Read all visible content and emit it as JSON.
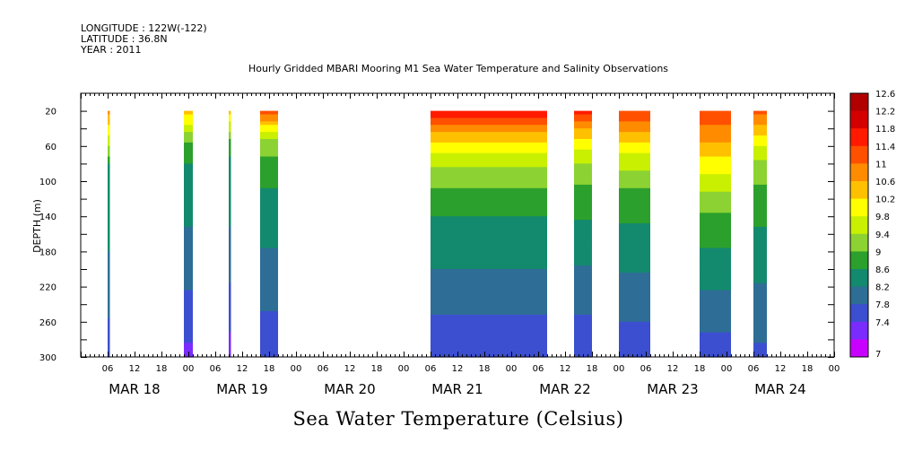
{
  "header": {
    "longitude": "LONGITUDE : 122W(-122)",
    "latitude": "LATITUDE : 36.8N",
    "year": "YEAR : 2011"
  },
  "chart_data": {
    "type": "heatmap",
    "title": "Hourly Gridded MBARI Mooring M1 Sea Water Temperature and Salinity Observations",
    "xlabel": "",
    "ylabel": "DEPTH (m)",
    "colorbar_label": "Sea Water Temperature (Celsius)",
    "x_unit": "hours since MAR 18 00:00",
    "xlim": [
      0,
      168
    ],
    "ylim": [
      300,
      0
    ],
    "yticks": [
      20,
      60,
      100,
      140,
      180,
      220,
      260,
      300
    ],
    "x_hour_ticks": [
      "06",
      "12",
      "18",
      "00",
      "06",
      "12",
      "18",
      "00",
      "06",
      "12",
      "18",
      "00",
      "06",
      "12",
      "18",
      "00",
      "06",
      "12",
      "18",
      "00",
      "06",
      "12",
      "18",
      "00",
      "06",
      "12",
      "18",
      "00"
    ],
    "date_labels": [
      "MAR 18",
      "MAR 19",
      "MAR 20",
      "MAR 21",
      "MAR 22",
      "MAR 23",
      "MAR 24"
    ],
    "depth_range": [
      20,
      300
    ],
    "colorbar": {
      "levels": [
        "12.6",
        "12.2",
        "11.8",
        "11.4",
        "11",
        "10.6",
        "10.2",
        "9.8",
        "9.4",
        "9",
        "8.6",
        "8.2",
        "7.8",
        "7.4",
        "7"
      ],
      "colors": [
        "#b00000",
        "#d40000",
        "#ff1a00",
        "#ff5000",
        "#ff8c00",
        "#ffc000",
        "#ffff00",
        "#c8f000",
        "#8cd232",
        "#2ca02c",
        "#138a6e",
        "#2e6e96",
        "#3c4fd0",
        "#7a2cff",
        "#c800ff"
      ]
    },
    "segments": [
      {
        "start": 6.0,
        "end": 6.5,
        "profile": [
          [
            20,
            10.8
          ],
          [
            40,
            10.1
          ],
          [
            60,
            9.4
          ],
          [
            80,
            8.6
          ],
          [
            120,
            8.3
          ],
          [
            180,
            8.2
          ],
          [
            240,
            7.9
          ],
          [
            300,
            7.5
          ]
        ]
      },
      {
        "start": 23.0,
        "end": 25.0,
        "profile": [
          [
            20,
            10.3
          ],
          [
            40,
            9.6
          ],
          [
            60,
            8.8
          ],
          [
            100,
            8.4
          ],
          [
            180,
            8.1
          ],
          [
            240,
            7.7
          ],
          [
            300,
            7.3
          ]
        ]
      },
      {
        "start": 33.0,
        "end": 33.5,
        "profile": [
          [
            20,
            10.4
          ],
          [
            40,
            9.5
          ],
          [
            60,
            8.7
          ],
          [
            100,
            8.4
          ],
          [
            180,
            8.1
          ],
          [
            240,
            7.6
          ],
          [
            300,
            7.2
          ]
        ]
      },
      {
        "start": 40.0,
        "end": 44.0,
        "profile": [
          [
            20,
            11.2
          ],
          [
            35,
            10.3
          ],
          [
            55,
            9.3
          ],
          [
            90,
            8.7
          ],
          [
            160,
            8.3
          ],
          [
            230,
            7.9
          ],
          [
            300,
            7.5
          ]
        ]
      },
      {
        "start": 78.0,
        "end": 104.0,
        "profile": [
          [
            20,
            11.8
          ],
          [
            35,
            11.0
          ],
          [
            60,
            10.0
          ],
          [
            90,
            9.2
          ],
          [
            140,
            8.6
          ],
          [
            200,
            8.2
          ],
          [
            250,
            7.8
          ],
          [
            300,
            7.4
          ]
        ]
      },
      {
        "start": 110.0,
        "end": 114.0,
        "profile": [
          [
            20,
            11.5
          ],
          [
            40,
            10.6
          ],
          [
            70,
            9.6
          ],
          [
            110,
            8.9
          ],
          [
            180,
            8.3
          ],
          [
            250,
            7.8
          ],
          [
            300,
            7.5
          ]
        ]
      },
      {
        "start": 120.0,
        "end": 127.0,
        "profile": [
          [
            20,
            11.4
          ],
          [
            45,
            10.6
          ],
          [
            75,
            9.6
          ],
          [
            120,
            8.8
          ],
          [
            190,
            8.3
          ],
          [
            260,
            7.8
          ],
          [
            300,
            7.5
          ]
        ]
      },
      {
        "start": 138.0,
        "end": 145.0,
        "profile": [
          [
            20,
            11.3
          ],
          [
            50,
            10.7
          ],
          [
            90,
            9.8
          ],
          [
            140,
            8.9
          ],
          [
            210,
            8.3
          ],
          [
            270,
            7.8
          ],
          [
            300,
            7.6
          ]
        ]
      },
      {
        "start": 150.0,
        "end": 153.0,
        "profile": [
          [
            20,
            11.2
          ],
          [
            40,
            10.4
          ],
          [
            70,
            9.5
          ],
          [
            110,
            8.9
          ],
          [
            180,
            8.4
          ],
          [
            250,
            8.0
          ],
          [
            300,
            7.7
          ]
        ]
      }
    ]
  }
}
